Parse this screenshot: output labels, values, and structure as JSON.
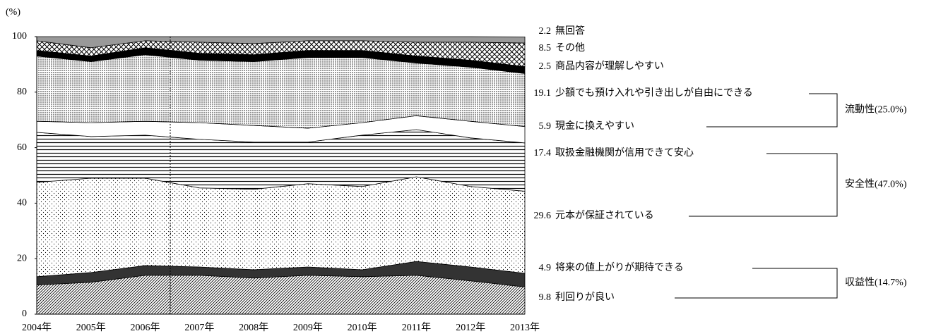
{
  "chart_data": {
    "type": "stacked-area",
    "y_label": "(%)",
    "categories": [
      "2004年",
      "2005年",
      "2006年",
      "2007年",
      "2008年",
      "2009年",
      "2010年",
      "2011年",
      "2012年",
      "2013年"
    ],
    "ylim": [
      0,
      100
    ],
    "yticks": [
      0,
      20,
      40,
      60,
      80,
      100
    ],
    "series": [
      {
        "name": "利回りが良い",
        "color": "#000000",
        "pattern": "diagonal",
        "values": [
          10.5,
          11.5,
          14,
          14,
          13,
          14,
          13.5,
          14,
          12,
          9.8
        ]
      },
      {
        "name": "将来の値上がりが期待できる",
        "color": "#333333",
        "pattern": "solid",
        "values": [
          3,
          3.5,
          3.5,
          3,
          3,
          3,
          2.5,
          5,
          5,
          4.9
        ]
      },
      {
        "name": "元本が保証されている",
        "color": "#000000",
        "pattern": "dots",
        "values": [
          34,
          34,
          31.5,
          28.5,
          29,
          30,
          30,
          30.5,
          29,
          29.6
        ]
      },
      {
        "name": "取扱金融機関が信用できて安心",
        "color": "#000000",
        "pattern": "hlines",
        "values": [
          18,
          15,
          15.5,
          17.5,
          17,
          15,
          18.5,
          17,
          17.5,
          17.4
        ]
      },
      {
        "name": "現金に換えやすい",
        "color": "#ffffff",
        "pattern": "solid",
        "values": [
          4,
          5,
          5,
          6,
          6,
          5,
          4.5,
          5,
          6,
          5.9
        ]
      },
      {
        "name": "少額でも預け入れや引き出しが自由にできる",
        "color": "#000000",
        "pattern": "dense-dots",
        "values": [
          23.5,
          22,
          24,
          22.5,
          23,
          25.5,
          23.5,
          19,
          19.5,
          19.1
        ]
      },
      {
        "name": "商品内容が理解しやすい",
        "color": "#000000",
        "pattern": "solid",
        "values": [
          2,
          2,
          2.5,
          2.5,
          2.5,
          2.5,
          2.5,
          2.5,
          2.5,
          2.5
        ]
      },
      {
        "name": "その他",
        "color": "#000000",
        "pattern": "crosshatch",
        "values": [
          3.5,
          3,
          2.5,
          4,
          4,
          3.5,
          3.5,
          5,
          6.5,
          8.5
        ]
      },
      {
        "name": "無回答",
        "color": "#999999",
        "pattern": "solid",
        "values": [
          1.5,
          4,
          1.5,
          2,
          2.5,
          1.5,
          1.5,
          2,
          2,
          2.2
        ]
      }
    ],
    "groups": [
      "流動性(25.0%)",
      "安全性(47.0%)",
      "収益性(14.7%)"
    ]
  }
}
